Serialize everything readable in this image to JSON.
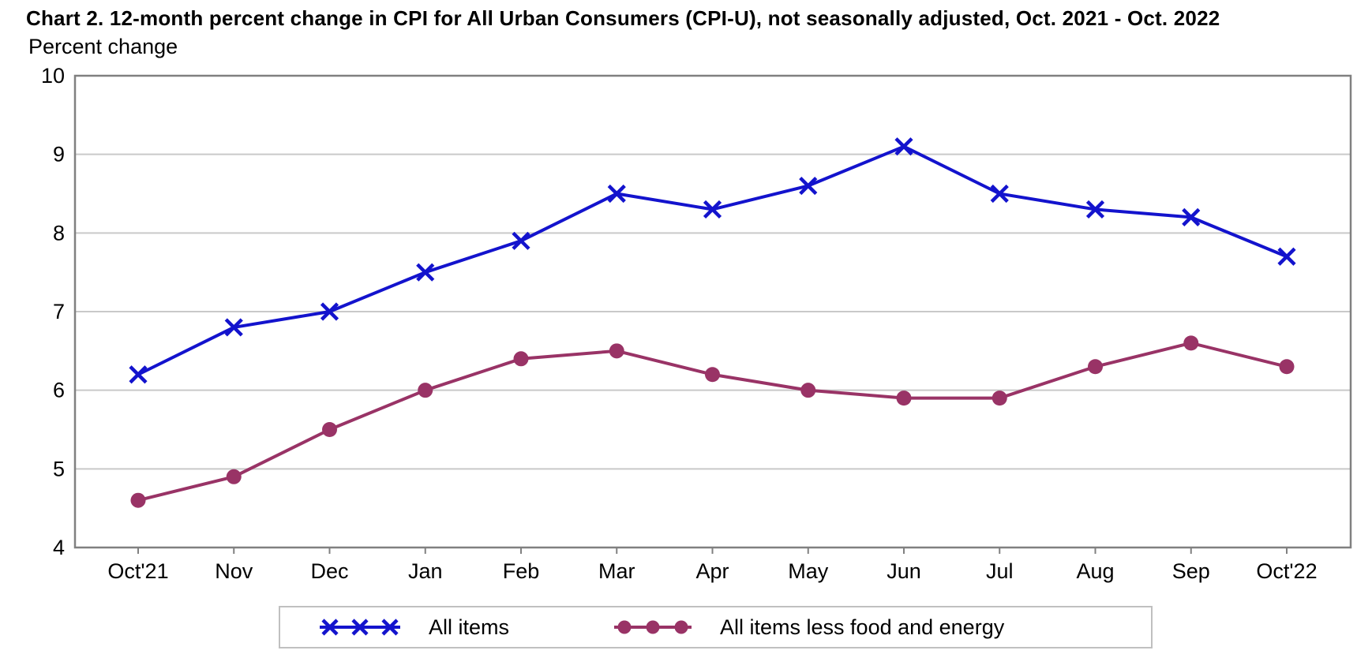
{
  "title": "Chart 2. 12-month percent change in CPI for All Urban Consumers (CPI-U), not seasonally adjusted, Oct. 2021 - Oct. 2022",
  "y_axis_caption": "Percent change",
  "chart_data": {
    "type": "line",
    "categories": [
      "Oct'21",
      "Nov",
      "Dec",
      "Jan",
      "Feb",
      "Mar",
      "Apr",
      "May",
      "Jun",
      "Jul",
      "Aug",
      "Sep",
      "Oct'22"
    ],
    "series": [
      {
        "name": "All items",
        "color": "#1313cd",
        "marker": "x",
        "values": [
          6.2,
          6.8,
          7.0,
          7.5,
          7.9,
          8.5,
          8.3,
          8.6,
          9.1,
          8.5,
          8.3,
          8.2,
          7.7
        ]
      },
      {
        "name": "All items less food and energy",
        "color": "#993366",
        "marker": "circle",
        "values": [
          4.6,
          4.9,
          5.5,
          6.0,
          6.4,
          6.5,
          6.2,
          6.0,
          5.9,
          5.9,
          6.3,
          6.6,
          6.3
        ]
      }
    ],
    "ylabel": "Percent change",
    "xlabel": "",
    "ylim": [
      4,
      10
    ],
    "ytick_step": 1,
    "yticks": [
      4,
      5,
      6,
      7,
      8,
      9,
      10
    ],
    "grid": "horizontal",
    "legend_position": "bottom",
    "axis_color": "#808080",
    "gridline_color": "#c9c9c9",
    "tick_label_color": "#000000"
  }
}
